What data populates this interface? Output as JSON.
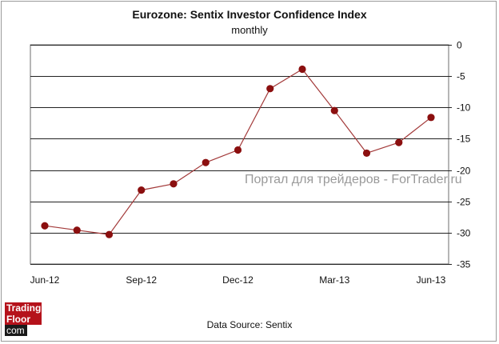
{
  "chart_data": {
    "type": "line",
    "title": "Eurozone: Sentix Investor Confidence Index",
    "subtitle": "monthly",
    "categories": [
      "Jun-12",
      "Jul-12",
      "Aug-12",
      "Sep-12",
      "Oct-12",
      "Nov-12",
      "Dec-12",
      "Jan-13",
      "Feb-13",
      "Mar-13",
      "Apr-13",
      "May-13",
      "Jun-13"
    ],
    "x_tick_labels": [
      "Jun-12",
      "Sep-12",
      "Dec-12",
      "Mar-13",
      "Jun-13"
    ],
    "values": [
      -28.9,
      -29.6,
      -30.3,
      -23.2,
      -22.2,
      -18.8,
      -16.8,
      -7.0,
      -3.9,
      -10.5,
      -17.3,
      -15.6,
      -11.6
    ],
    "ylim": [
      -35,
      0
    ],
    "y_ticks": [
      0,
      -5,
      -10,
      -15,
      -20,
      -25,
      -30,
      -35
    ],
    "y_axis_side": "right",
    "grid": true,
    "line_color": "#a33a3a",
    "marker_color": "#8b0f0f",
    "xlabel": "",
    "ylabel": ""
  },
  "source": "Data Source: Sentix",
  "watermark": "Портал для трейдеров - ForTrader.ru",
  "logo": {
    "line1": "Trading",
    "line2": "Floor",
    "line3": "com"
  }
}
